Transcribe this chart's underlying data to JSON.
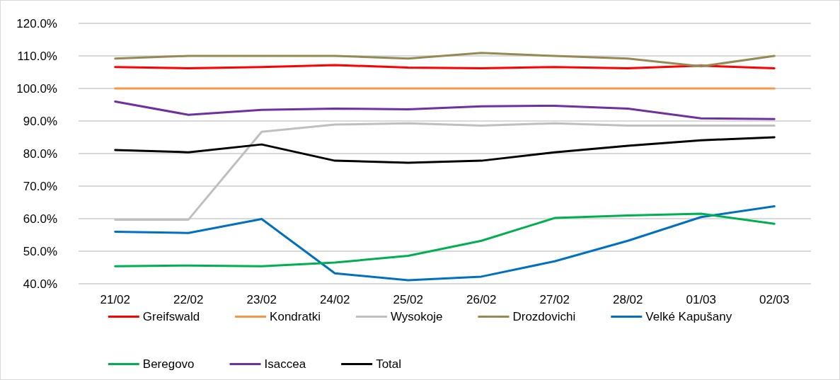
{
  "chart_data": {
    "type": "line",
    "categories": [
      "21/02",
      "22/02",
      "23/02",
      "24/02",
      "25/02",
      "26/02",
      "27/02",
      "28/02",
      "01/03",
      "02/03"
    ],
    "series": [
      {
        "name": "Greifswald",
        "color": "#ff0000",
        "values": [
          106.6,
          106.2,
          106.6,
          107.2,
          106.4,
          106.2,
          106.6,
          106.2,
          107.0,
          106.2
        ]
      },
      {
        "name": "Kondratki",
        "color": "#f79646",
        "values": [
          100,
          100,
          100,
          100,
          100,
          100,
          100,
          100,
          100,
          100
        ]
      },
      {
        "name": "Wysokoje",
        "color": "#bfbfbf",
        "values": [
          59.7,
          59.7,
          86.7,
          88.9,
          89.3,
          88.6,
          89.3,
          88.6,
          88.6,
          88.6
        ]
      },
      {
        "name": "Drozdovichi",
        "color": "#948a54",
        "values": [
          109.2,
          110,
          110,
          110,
          109.2,
          110.9,
          110,
          109.2,
          106.8,
          110
        ]
      },
      {
        "name": "Velké Kapušany",
        "color": "#0070c0",
        "values": [
          56.0,
          55.6,
          59.9,
          43.2,
          41.1,
          42.2,
          46.9,
          53.2,
          60.5,
          63.8
        ]
      },
      {
        "name": "Beregovo",
        "color": "#00b050",
        "values": [
          45.4,
          45.6,
          45.4,
          46.5,
          48.6,
          53.2,
          60.2,
          61.0,
          61.5,
          58.4
        ]
      },
      {
        "name": "Isaccea",
        "color": "#7030a0",
        "values": [
          96.0,
          91.9,
          93.4,
          93.8,
          93.6,
          94.5,
          94.7,
          93.8,
          90.8,
          90.6
        ]
      },
      {
        "name": "Total",
        "color": "#000000",
        "values": [
          81.1,
          80.4,
          82.8,
          77.8,
          77.2,
          77.8,
          80.4,
          82.4,
          84.1,
          85.0
        ]
      }
    ],
    "ylim": [
      40,
      120
    ],
    "yticks": [
      {
        "value": 40,
        "label": "40.0%"
      },
      {
        "value": 50,
        "label": "50.0%"
      },
      {
        "value": 60,
        "label": "60.0%"
      },
      {
        "value": 70,
        "label": "70.0%"
      },
      {
        "value": 80,
        "label": "80.0%"
      },
      {
        "value": 90,
        "label": "90.0%"
      },
      {
        "value": 100,
        "label": "100.0%"
      },
      {
        "value": 110,
        "label": "110.0%"
      },
      {
        "value": 120,
        "label": "120.0%"
      }
    ],
    "grid": "y",
    "legend": "bottom",
    "marker": "none",
    "line_style": "solid"
  }
}
